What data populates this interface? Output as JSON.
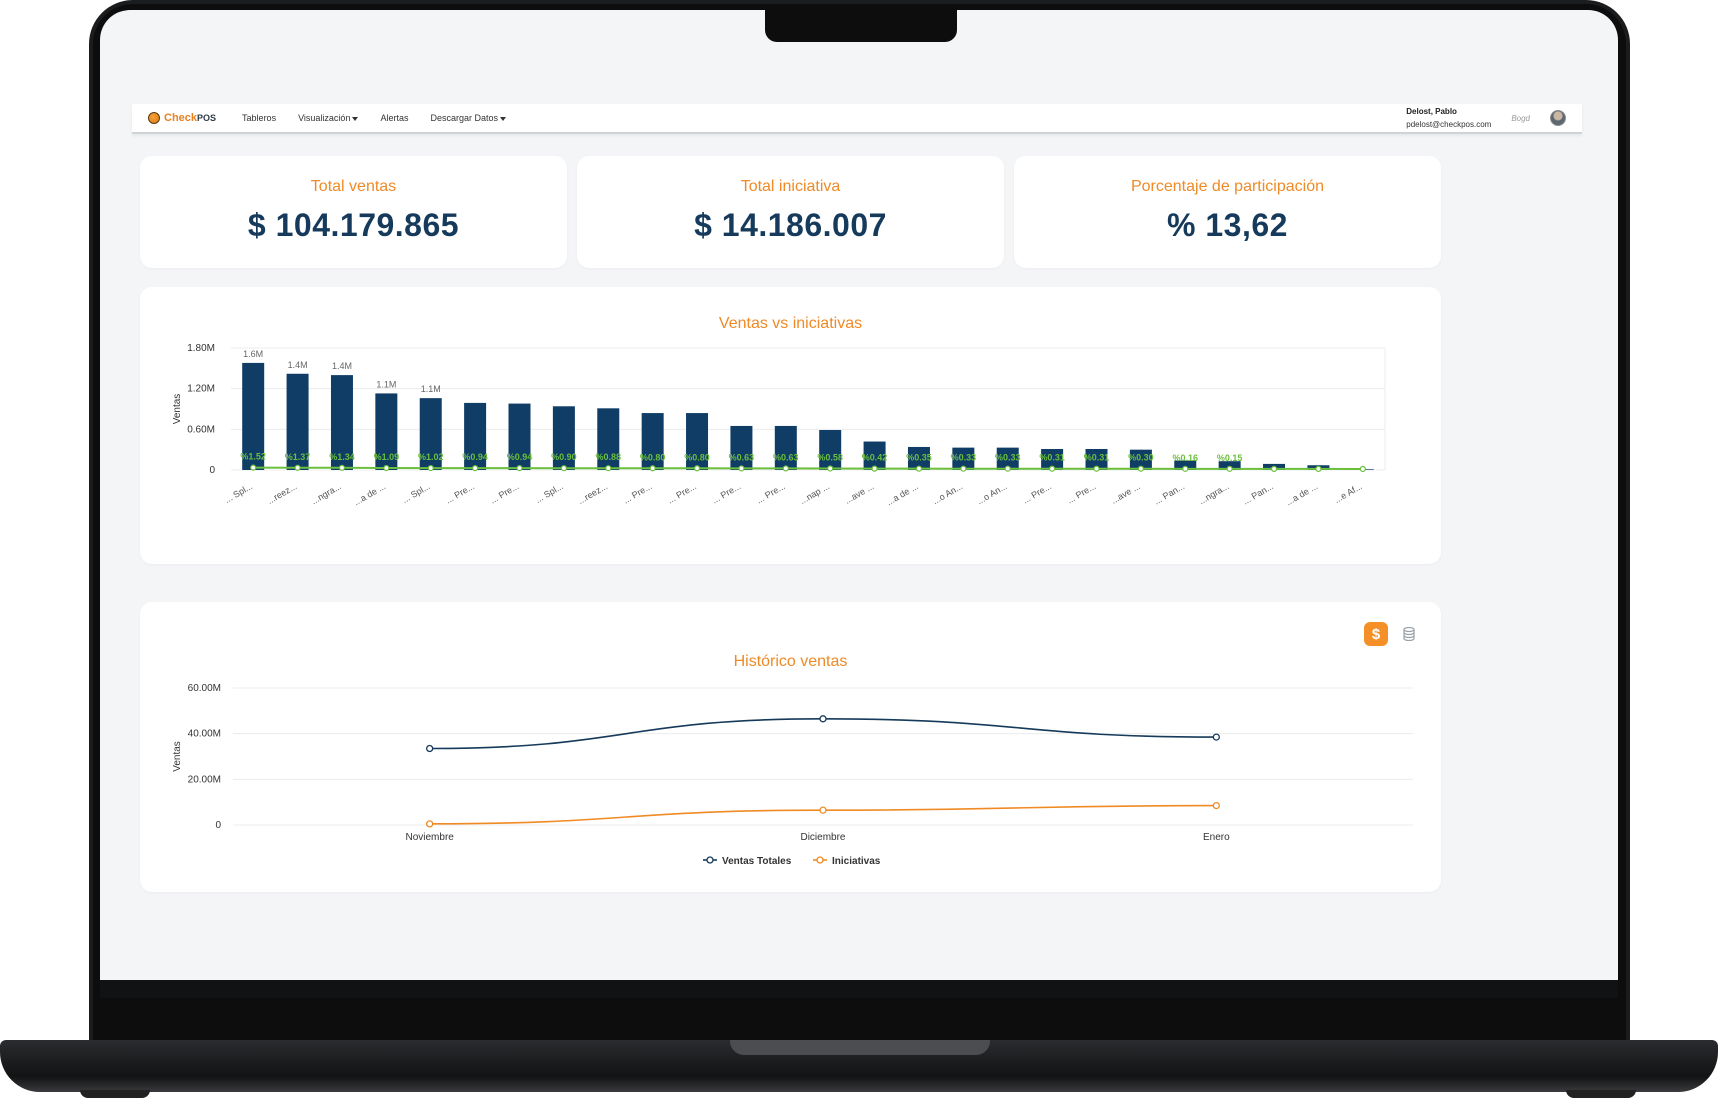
{
  "navbar": {
    "logo": {
      "brand": "Check",
      "suffix": "POS"
    },
    "items": [
      {
        "label": "Tableros",
        "dropdown": false
      },
      {
        "label": "Visualización",
        "dropdown": true
      },
      {
        "label": "Alertas",
        "dropdown": false
      },
      {
        "label": "Descargar Datos",
        "dropdown": true
      }
    ],
    "user": {
      "name": "Delost, Pablo",
      "email": "pdelost@checkpos.com",
      "extra": "Bogd"
    }
  },
  "kpis": [
    {
      "label": "Total ventas",
      "value": "$ 104.179.865"
    },
    {
      "label": "Total iniciativa",
      "value": "$ 14.186.007"
    },
    {
      "label": "Porcentaje de participación",
      "value": "% 13,62"
    }
  ],
  "colors": {
    "accent": "#ef8a26",
    "bar": "#0f3d66",
    "line_green": "#6abf3c",
    "series_total": "#153a5b",
    "series_iniciativas": "#f08a24"
  },
  "chart_data": [
    {
      "type": "bar",
      "title": "Ventas vs iniciativas",
      "ylabel": "Ventas",
      "yticks": [
        "0",
        "0.60M",
        "1.20M",
        "1.80M"
      ],
      "ylim": [
        0,
        1800000
      ],
      "categories": [
        "... Spl...",
        "...reez...",
        "...ngra...",
        "...a de ...",
        "... Spl...",
        "... Pre...",
        "... Pre...",
        "... Spl...",
        "...reez...",
        "... Pre...",
        "... Pre...",
        "... Pre...",
        "... Pre...",
        "...nap ...",
        "...ave ...",
        "...a de ...",
        "...o An...",
        "...o An...",
        "... Pre...",
        "... Pre...",
        "...ave ...",
        "... Pan...",
        "...ngra...",
        "... Pan...",
        "...a de ...",
        "...e Af..."
      ],
      "values": [
        1580000,
        1420000,
        1400000,
        1130000,
        1060000,
        990000,
        980000,
        940000,
        910000,
        840000,
        840000,
        650000,
        650000,
        590000,
        420000,
        340000,
        330000,
        330000,
        310000,
        310000,
        300000,
        140000,
        130000,
        90000,
        70000,
        10000
      ],
      "bar_labels": [
        "1.6M",
        "1.4M",
        "1.4M",
        "1.1M",
        "1.1M",
        "",
        "",
        "",
        "",
        "",
        "",
        "",
        "",
        "",
        "",
        "",
        "",
        "",
        "",
        "",
        "",
        "",
        "",
        "",
        "",
        ""
      ],
      "line_labels": [
        "%1.52",
        "%1.37",
        "%1.34",
        "%1.09",
        "%1.02",
        "%0.94",
        "%0.94",
        "%0.90",
        "%0.88",
        "%0.80",
        "%0.80",
        "%0.63",
        "%0.63",
        "%0.58",
        "%0.42",
        "%0.35",
        "%0.33",
        "%0.33",
        "%0.31",
        "%0.31",
        "%0.30",
        "%0.16",
        "%0.15",
        "",
        "",
        ""
      ],
      "line_values": [
        1.52,
        1.37,
        1.34,
        1.09,
        1.02,
        0.94,
        0.94,
        0.9,
        0.88,
        0.8,
        0.8,
        0.63,
        0.63,
        0.58,
        0.42,
        0.35,
        0.33,
        0.33,
        0.31,
        0.31,
        0.3,
        0.16,
        0.15,
        0.1,
        0.07,
        0.01
      ],
      "grid": true
    },
    {
      "type": "line",
      "title": "Histórico ventas",
      "ylabel": "Ventas",
      "yticks": [
        "0",
        "20.00M",
        "40.00M",
        "60.00M"
      ],
      "ylim": [
        0,
        60000000
      ],
      "categories": [
        "Noviembre",
        "Diciembre",
        "Enero"
      ],
      "series": [
        {
          "name": "Ventas Totales",
          "values": [
            33500000,
            46500000,
            38500000
          ]
        },
        {
          "name": "Iniciativas",
          "values": [
            500000,
            6500000,
            8500000
          ]
        }
      ],
      "legend": "bottom-center",
      "grid": true
    }
  ],
  "historico": {
    "toggle_currency": "$"
  }
}
